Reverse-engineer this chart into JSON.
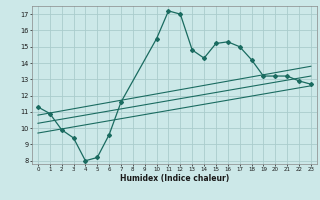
{
  "xlabel": "Humidex (Indice chaleur)",
  "ylabel": "",
  "background_color": "#cce8e8",
  "grid_color": "#aacccc",
  "line_color": "#1a6b60",
  "xlim": [
    -0.5,
    23.5
  ],
  "ylim": [
    7.8,
    17.5
  ],
  "yticks": [
    8,
    9,
    10,
    11,
    12,
    13,
    14,
    15,
    16,
    17
  ],
  "xticks": [
    0,
    1,
    2,
    3,
    4,
    5,
    6,
    7,
    8,
    9,
    10,
    11,
    12,
    13,
    14,
    15,
    16,
    17,
    18,
    19,
    20,
    21,
    22,
    23
  ],
  "series1_x": [
    0,
    1,
    2,
    3,
    4,
    5,
    6,
    7,
    10,
    11,
    12,
    13,
    14,
    15,
    16,
    17,
    18,
    19,
    20,
    21,
    22,
    23
  ],
  "series1_y": [
    11.3,
    10.9,
    9.9,
    9.4,
    8.0,
    8.2,
    9.6,
    11.6,
    15.5,
    17.2,
    17.0,
    14.8,
    14.3,
    15.2,
    15.3,
    15.0,
    14.2,
    13.2,
    13.2,
    13.2,
    12.9,
    12.7
  ],
  "series2_x": [
    0,
    23
  ],
  "series2_y": [
    10.8,
    13.8
  ],
  "series3_x": [
    0,
    23
  ],
  "series3_y": [
    10.3,
    13.2
  ],
  "series4_x": [
    0,
    23
  ],
  "series4_y": [
    9.7,
    12.6
  ]
}
